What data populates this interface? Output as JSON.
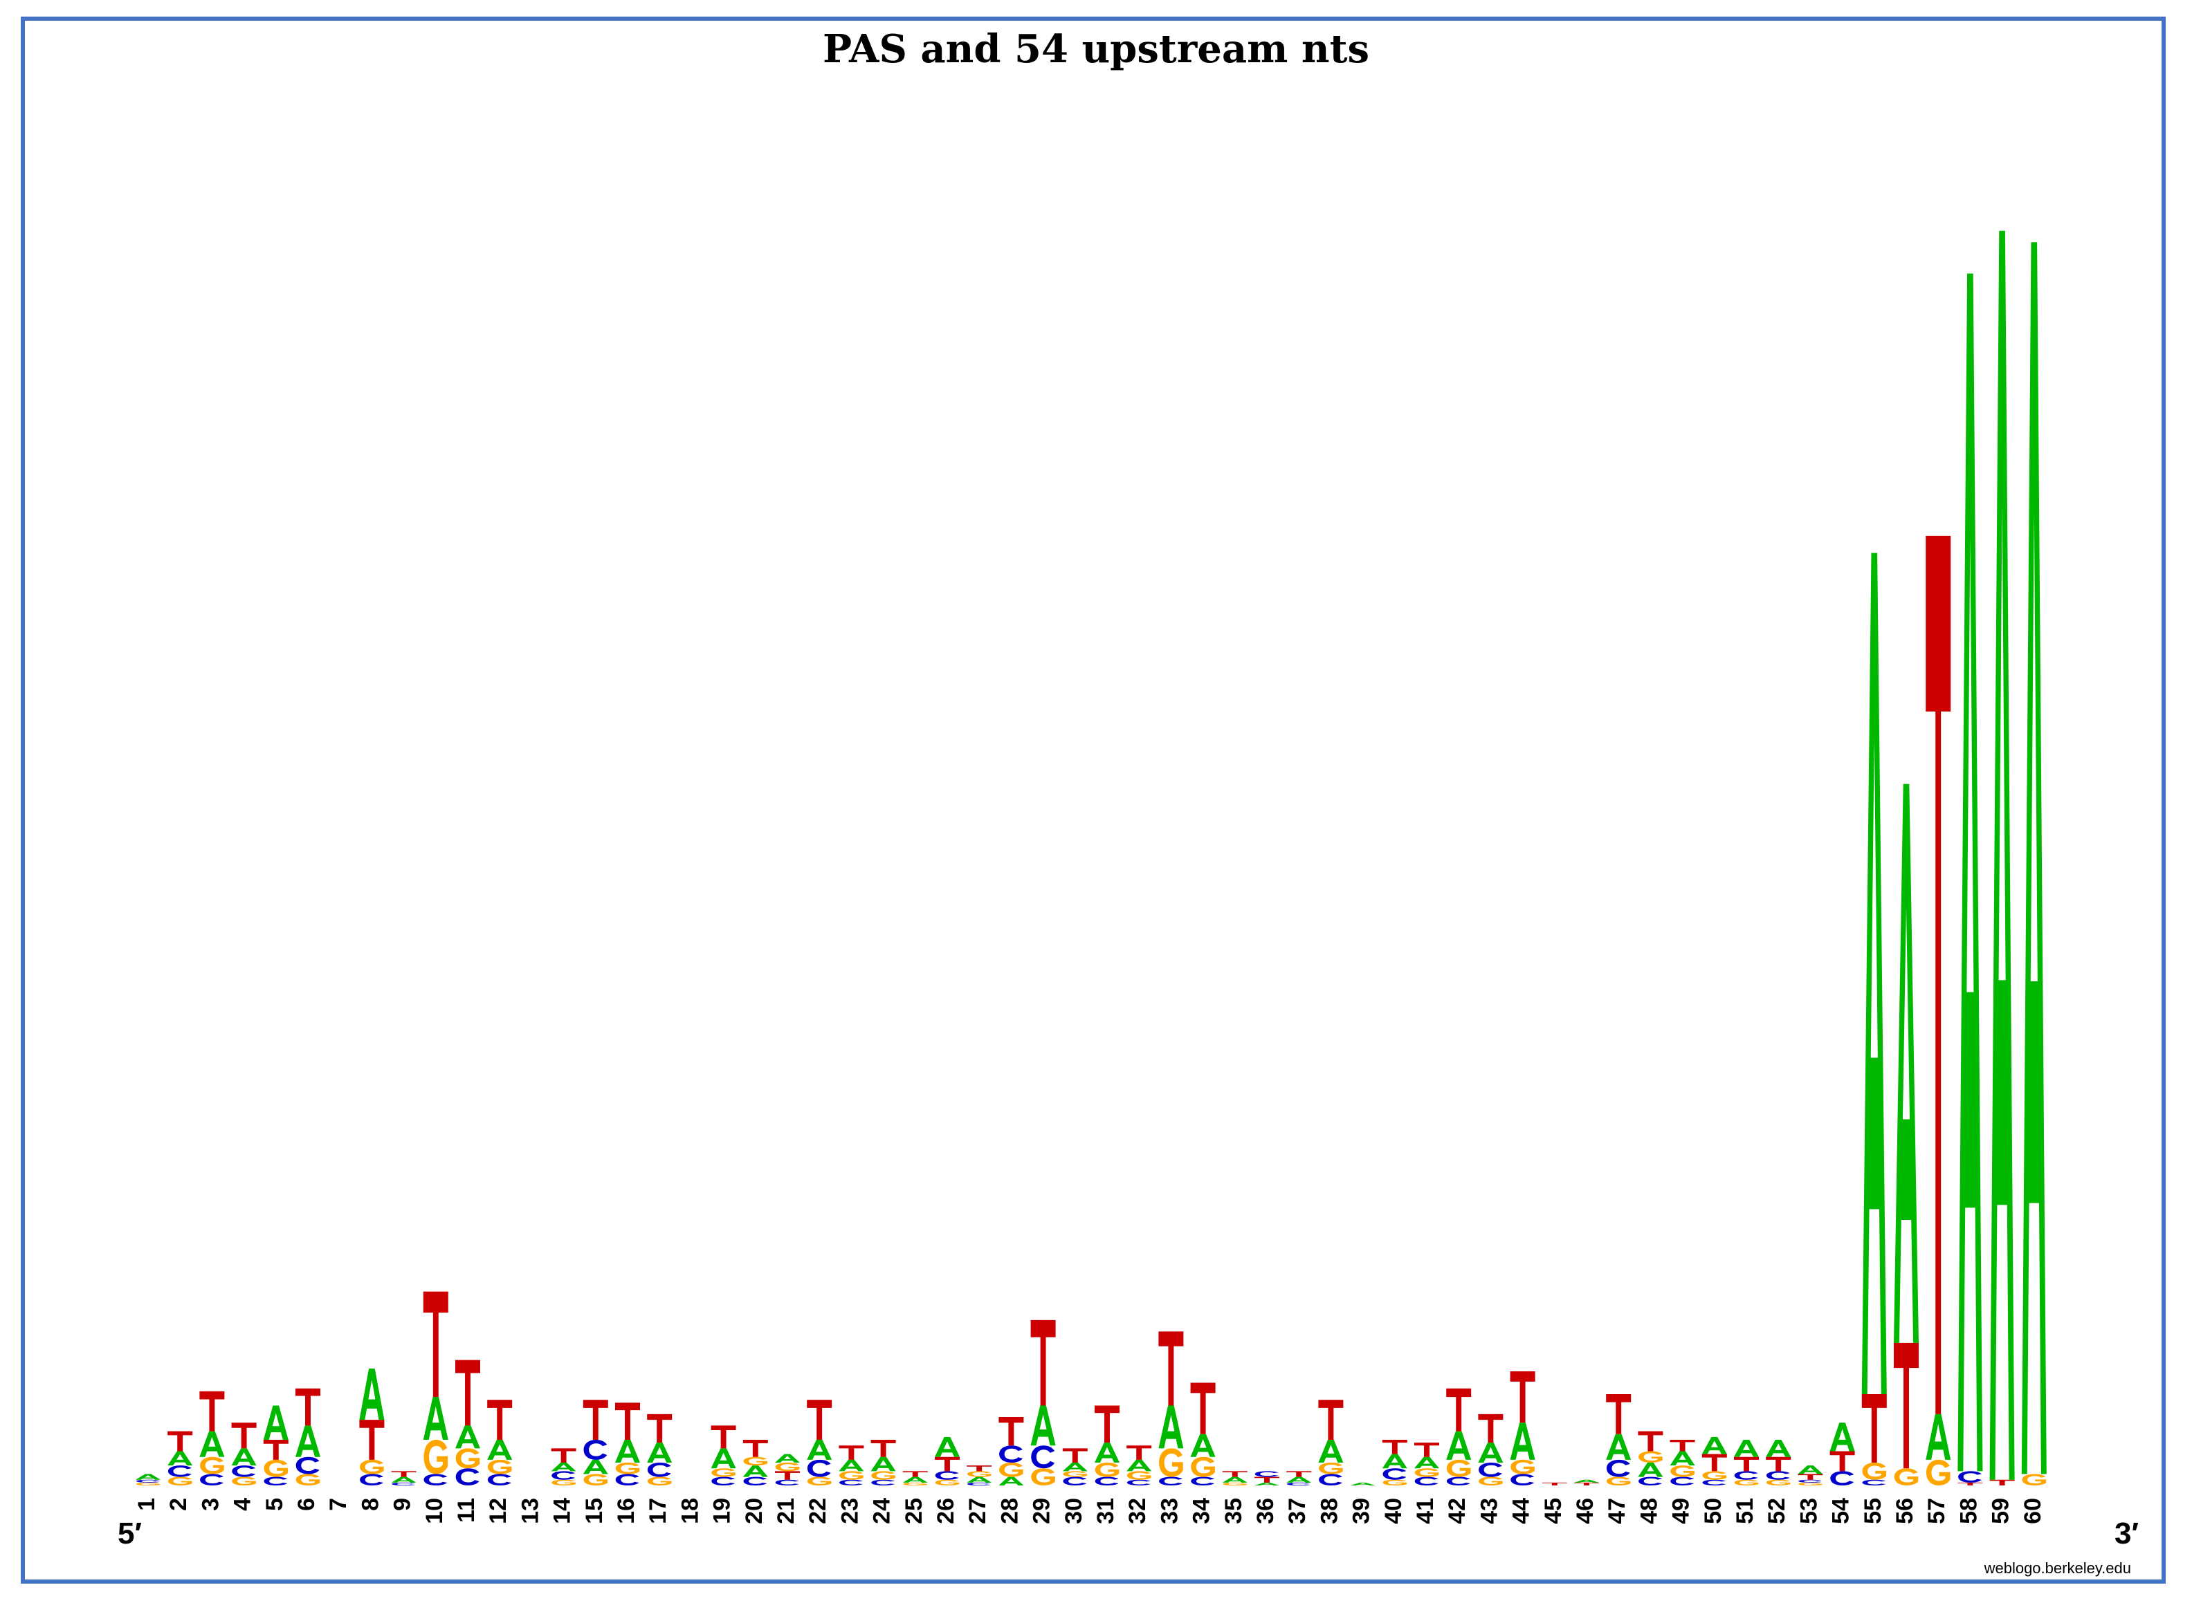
{
  "chart_data": {
    "type": "sequence-logo",
    "title": "PAS and 54 upstream nts",
    "five_prime_label": "5′",
    "three_prime_label": "3′",
    "credit": "weblogo.berkeley.edu",
    "colors": {
      "A": "#00b800",
      "C": "#0000cc",
      "G": "#ffa500",
      "T": "#cc0000"
    },
    "y_unit": "bits",
    "ylim": [
      0,
      4.7
    ],
    "positions": [
      {
        "pos": "1",
        "stack": [
          [
            "G",
            0.01
          ],
          [
            "C",
            0.01
          ],
          [
            "A",
            0.02
          ]
        ]
      },
      {
        "pos": "2",
        "stack": [
          [
            "G",
            0.03
          ],
          [
            "C",
            0.04
          ],
          [
            "A",
            0.05
          ],
          [
            "T",
            0.07
          ]
        ]
      },
      {
        "pos": "3",
        "stack": [
          [
            "C",
            0.04
          ],
          [
            "G",
            0.06
          ],
          [
            "A",
            0.09
          ],
          [
            "T",
            0.14
          ]
        ]
      },
      {
        "pos": "4",
        "stack": [
          [
            "G",
            0.03
          ],
          [
            "C",
            0.04
          ],
          [
            "A",
            0.06
          ],
          [
            "T",
            0.09
          ]
        ]
      },
      {
        "pos": "5",
        "stack": [
          [
            "C",
            0.03
          ],
          [
            "G",
            0.06
          ],
          [
            "T",
            0.07
          ],
          [
            "A",
            0.12
          ]
        ]
      },
      {
        "pos": "6",
        "stack": [
          [
            "G",
            0.04
          ],
          [
            "C",
            0.06
          ],
          [
            "A",
            0.11
          ],
          [
            "T",
            0.13
          ]
        ]
      },
      {
        "pos": "7",
        "stack": []
      },
      {
        "pos": "8",
        "stack": [
          [
            "C",
            0.04
          ],
          [
            "G",
            0.05
          ],
          [
            "T",
            0.14
          ],
          [
            "A",
            0.18
          ]
        ]
      },
      {
        "pos": "9",
        "stack": [
          [
            "C",
            0.01
          ],
          [
            "A",
            0.02
          ],
          [
            "T",
            0.02
          ]
        ]
      },
      {
        "pos": "10",
        "stack": [
          [
            "C",
            0.04
          ],
          [
            "G",
            0.12
          ],
          [
            "A",
            0.15
          ],
          [
            "T",
            0.37
          ]
        ]
      },
      {
        "pos": "11",
        "stack": [
          [
            "C",
            0.06
          ],
          [
            "G",
            0.07
          ],
          [
            "A",
            0.08
          ],
          [
            "T",
            0.23
          ]
        ]
      },
      {
        "pos": "12",
        "stack": [
          [
            "C",
            0.04
          ],
          [
            "G",
            0.05
          ],
          [
            "A",
            0.07
          ],
          [
            "T",
            0.14
          ]
        ]
      },
      {
        "pos": "13",
        "stack": []
      },
      {
        "pos": "14",
        "stack": [
          [
            "G",
            0.02
          ],
          [
            "C",
            0.03
          ],
          [
            "A",
            0.03
          ],
          [
            "T",
            0.05
          ]
        ]
      },
      {
        "pos": "15",
        "stack": [
          [
            "G",
            0.04
          ],
          [
            "A",
            0.05
          ],
          [
            "C",
            0.07
          ],
          [
            "T",
            0.14
          ]
        ]
      },
      {
        "pos": "16",
        "stack": [
          [
            "C",
            0.04
          ],
          [
            "G",
            0.04
          ],
          [
            "A",
            0.08
          ],
          [
            "T",
            0.13
          ]
        ]
      },
      {
        "pos": "17",
        "stack": [
          [
            "G",
            0.03
          ],
          [
            "C",
            0.05
          ],
          [
            "A",
            0.07
          ],
          [
            "T",
            0.1
          ]
        ]
      },
      {
        "pos": "18",
        "stack": []
      },
      {
        "pos": "19",
        "stack": [
          [
            "C",
            0.03
          ],
          [
            "G",
            0.03
          ],
          [
            "A",
            0.07
          ],
          [
            "T",
            0.08
          ]
        ]
      },
      {
        "pos": "20",
        "stack": [
          [
            "C",
            0.03
          ],
          [
            "A",
            0.04
          ],
          [
            "G",
            0.03
          ],
          [
            "T",
            0.06
          ]
        ]
      },
      {
        "pos": "21",
        "stack": [
          [
            "C",
            0.02
          ],
          [
            "T",
            0.03
          ],
          [
            "G",
            0.03
          ],
          [
            "A",
            0.03
          ]
        ]
      },
      {
        "pos": "22",
        "stack": [
          [
            "G",
            0.03
          ],
          [
            "C",
            0.06
          ],
          [
            "A",
            0.07
          ],
          [
            "T",
            0.14
          ]
        ]
      },
      {
        "pos": "23",
        "stack": [
          [
            "C",
            0.02
          ],
          [
            "G",
            0.03
          ],
          [
            "A",
            0.04
          ],
          [
            "T",
            0.05
          ]
        ]
      },
      {
        "pos": "24",
        "stack": [
          [
            "C",
            0.02
          ],
          [
            "G",
            0.03
          ],
          [
            "A",
            0.05
          ],
          [
            "T",
            0.06
          ]
        ]
      },
      {
        "pos": "25",
        "stack": [
          [
            "G",
            0.01
          ],
          [
            "A",
            0.02
          ],
          [
            "T",
            0.02
          ]
        ]
      },
      {
        "pos": "26",
        "stack": [
          [
            "G",
            0.02
          ],
          [
            "C",
            0.03
          ],
          [
            "T",
            0.05
          ],
          [
            "A",
            0.07
          ]
        ]
      },
      {
        "pos": "27",
        "stack": [
          [
            "C",
            0.01
          ],
          [
            "A",
            0.02
          ],
          [
            "G",
            0.02
          ],
          [
            "T",
            0.02
          ]
        ]
      },
      {
        "pos": "28",
        "stack": [
          [
            "A",
            0.03
          ],
          [
            "G",
            0.05
          ],
          [
            "C",
            0.06
          ],
          [
            "T",
            0.1
          ]
        ]
      },
      {
        "pos": "29",
        "stack": [
          [
            "G",
            0.06
          ],
          [
            "C",
            0.08
          ],
          [
            "A",
            0.14
          ],
          [
            "T",
            0.3
          ]
        ]
      },
      {
        "pos": "30",
        "stack": [
          [
            "C",
            0.03
          ],
          [
            "G",
            0.02
          ],
          [
            "A",
            0.03
          ],
          [
            "T",
            0.05
          ]
        ]
      },
      {
        "pos": "31",
        "stack": [
          [
            "C",
            0.03
          ],
          [
            "G",
            0.05
          ],
          [
            "A",
            0.07
          ],
          [
            "T",
            0.13
          ]
        ]
      },
      {
        "pos": "32",
        "stack": [
          [
            "C",
            0.02
          ],
          [
            "G",
            0.03
          ],
          [
            "A",
            0.04
          ],
          [
            "T",
            0.05
          ]
        ]
      },
      {
        "pos": "33",
        "stack": [
          [
            "C",
            0.03
          ],
          [
            "G",
            0.1
          ],
          [
            "A",
            0.15
          ],
          [
            "T",
            0.26
          ]
        ]
      },
      {
        "pos": "34",
        "stack": [
          [
            "C",
            0.03
          ],
          [
            "G",
            0.07
          ],
          [
            "A",
            0.08
          ],
          [
            "T",
            0.18
          ]
        ]
      },
      {
        "pos": "35",
        "stack": [
          [
            "G",
            0.01
          ],
          [
            "A",
            0.02
          ],
          [
            "T",
            0.02
          ]
        ]
      },
      {
        "pos": "36",
        "stack": [
          [
            "A",
            0.01
          ],
          [
            "T",
            0.02
          ],
          [
            "C",
            0.02
          ]
        ]
      },
      {
        "pos": "37",
        "stack": [
          [
            "C",
            0.01
          ],
          [
            "A",
            0.02
          ],
          [
            "T",
            0.02
          ]
        ]
      },
      {
        "pos": "38",
        "stack": [
          [
            "C",
            0.04
          ],
          [
            "G",
            0.04
          ],
          [
            "A",
            0.08
          ],
          [
            "T",
            0.14
          ]
        ]
      },
      {
        "pos": "39",
        "stack": [
          [
            "A",
            0.01
          ]
        ]
      },
      {
        "pos": "40",
        "stack": [
          [
            "G",
            0.02
          ],
          [
            "C",
            0.04
          ],
          [
            "A",
            0.05
          ],
          [
            "T",
            0.05
          ]
        ]
      },
      {
        "pos": "41",
        "stack": [
          [
            "C",
            0.03
          ],
          [
            "G",
            0.03
          ],
          [
            "A",
            0.04
          ],
          [
            "T",
            0.05
          ]
        ]
      },
      {
        "pos": "42",
        "stack": [
          [
            "C",
            0.03
          ],
          [
            "G",
            0.06
          ],
          [
            "A",
            0.1
          ],
          [
            "T",
            0.15
          ]
        ]
      },
      {
        "pos": "43",
        "stack": [
          [
            "G",
            0.03
          ],
          [
            "C",
            0.05
          ],
          [
            "A",
            0.07
          ],
          [
            "T",
            0.1
          ]
        ]
      },
      {
        "pos": "44",
        "stack": [
          [
            "C",
            0.04
          ],
          [
            "G",
            0.05
          ],
          [
            "A",
            0.13
          ],
          [
            "T",
            0.18
          ]
        ]
      },
      {
        "pos": "45",
        "stack": [
          [
            "T",
            0.01
          ]
        ]
      },
      {
        "pos": "46",
        "stack": [
          [
            "T",
            0.01
          ],
          [
            "A",
            0.01
          ]
        ]
      },
      {
        "pos": "47",
        "stack": [
          [
            "G",
            0.03
          ],
          [
            "C",
            0.06
          ],
          [
            "A",
            0.09
          ],
          [
            "T",
            0.14
          ]
        ]
      },
      {
        "pos": "48",
        "stack": [
          [
            "C",
            0.03
          ],
          [
            "A",
            0.05
          ],
          [
            "G",
            0.04
          ],
          [
            "T",
            0.07
          ]
        ]
      },
      {
        "pos": "49",
        "stack": [
          [
            "C",
            0.03
          ],
          [
            "G",
            0.04
          ],
          [
            "A",
            0.05
          ],
          [
            "T",
            0.04
          ]
        ]
      },
      {
        "pos": "50",
        "stack": [
          [
            "C",
            0.02
          ],
          [
            "G",
            0.03
          ],
          [
            "T",
            0.06
          ],
          [
            "A",
            0.06
          ]
        ]
      },
      {
        "pos": "51",
        "stack": [
          [
            "G",
            0.02
          ],
          [
            "C",
            0.03
          ],
          [
            "T",
            0.05
          ],
          [
            "A",
            0.06
          ]
        ]
      },
      {
        "pos": "52",
        "stack": [
          [
            "G",
            0.02
          ],
          [
            "C",
            0.03
          ],
          [
            "T",
            0.05
          ],
          [
            "A",
            0.06
          ]
        ]
      },
      {
        "pos": "53",
        "stack": [
          [
            "G",
            0.01
          ],
          [
            "C",
            0.01
          ],
          [
            "T",
            0.02
          ],
          [
            "A",
            0.03
          ]
        ]
      },
      {
        "pos": "54",
        "stack": [
          [
            "C",
            0.05
          ],
          [
            "T",
            0.07
          ],
          [
            "A",
            0.1
          ]
        ]
      },
      {
        "pos": "55",
        "stack": [
          [
            "C",
            0.02
          ],
          [
            "G",
            0.06
          ],
          [
            "T",
            0.24
          ],
          [
            "A",
            2.95
          ]
        ]
      },
      {
        "pos": "56",
        "stack": [
          [
            "G",
            0.06
          ],
          [
            "T",
            0.44
          ],
          [
            "A",
            1.96
          ]
        ]
      },
      {
        "pos": "57",
        "stack": [
          [
            "G",
            0.09
          ],
          [
            "A",
            0.16
          ],
          [
            "T",
            3.08
          ]
        ]
      },
      {
        "pos": "58",
        "stack": [
          [
            "T",
            0.01
          ],
          [
            "C",
            0.04
          ],
          [
            "A",
            4.2
          ]
        ]
      },
      {
        "pos": "59",
        "stack": [
          [
            "T",
            0.02
          ],
          [
            "A",
            4.38
          ]
        ]
      },
      {
        "pos": "60",
        "stack": [
          [
            "G",
            0.04
          ],
          [
            "A",
            4.32
          ]
        ]
      }
    ]
  }
}
